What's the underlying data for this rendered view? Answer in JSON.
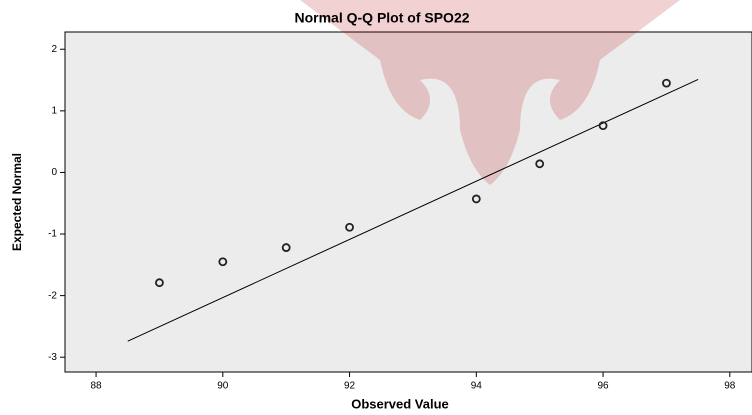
{
  "chart_data": {
    "type": "scatter",
    "title": "Normal Q-Q Plot of SPO22",
    "xlabel": "Observed Value",
    "ylabel": "Expected Normal",
    "x": [
      89,
      90,
      91,
      92,
      94,
      95,
      96,
      97
    ],
    "values": [
      -1.79,
      -1.45,
      -1.22,
      -0.89,
      -0.43,
      0.14,
      0.76,
      1.45
    ],
    "color": "#222222",
    "reference_line": {
      "x": [
        88.5,
        97.5
      ],
      "values": [
        -2.74,
        1.51
      ],
      "color": "#000000"
    },
    "xlim": [
      87.51,
      98.35
    ],
    "xticks": [
      88,
      90,
      92,
      94,
      96,
      98
    ],
    "ylim": [
      -3.24,
      2.28
    ],
    "yticks": [
      -3,
      -2,
      -1,
      0,
      1,
      2
    ],
    "background": "#ececec"
  }
}
